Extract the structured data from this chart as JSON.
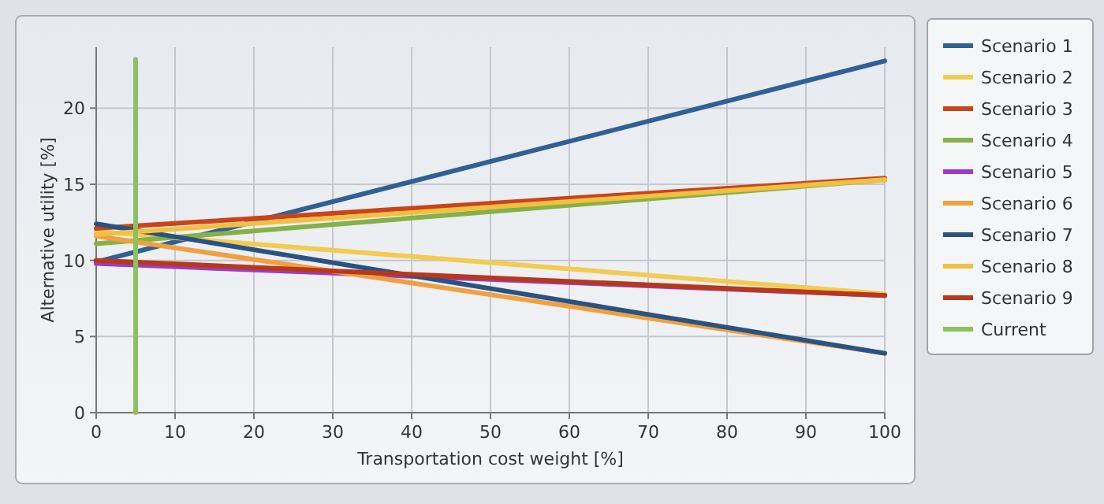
{
  "chart_data": {
    "type": "line",
    "xlabel": "Transportation cost weight [%]",
    "ylabel": "Alternative utility [%]",
    "xlim": [
      0,
      100
    ],
    "ylim": [
      0,
      24
    ],
    "xticks": [
      0,
      10,
      20,
      30,
      40,
      50,
      60,
      70,
      80,
      90,
      100
    ],
    "yticks": [
      0,
      5,
      10,
      15,
      20
    ],
    "grid": true,
    "legend": "right",
    "marker": "none",
    "line_style": "solid",
    "x": [
      0,
      100
    ],
    "series": [
      {
        "name": "Scenario 1",
        "color": "#2f6096",
        "values": [
          9.9,
          23.1
        ]
      },
      {
        "name": "Scenario 2",
        "color": "#f2cc50",
        "values": [
          11.9,
          7.8
        ]
      },
      {
        "name": "Scenario 3",
        "color": "#c9441c",
        "values": [
          12.1,
          15.4
        ]
      },
      {
        "name": "Scenario 4",
        "color": "#86b048",
        "values": [
          11.1,
          15.3
        ]
      },
      {
        "name": "Scenario 5",
        "color": "#9a3cc8",
        "values": [
          9.8,
          7.7
        ]
      },
      {
        "name": "Scenario 6",
        "color": "#f0a040",
        "values": [
          11.6,
          3.9
        ]
      },
      {
        "name": "Scenario 7",
        "color": "#2a5282",
        "values": [
          12.4,
          3.9
        ]
      },
      {
        "name": "Scenario 8",
        "color": "#f2c040",
        "values": [
          11.7,
          15.3
        ]
      },
      {
        "name": "Scenario 9",
        "color": "#b8381a",
        "values": [
          10.0,
          7.7
        ]
      },
      {
        "name": "Current",
        "color": "#8cc060",
        "x": [
          5,
          5
        ],
        "values": [
          0,
          23.2
        ]
      }
    ]
  }
}
